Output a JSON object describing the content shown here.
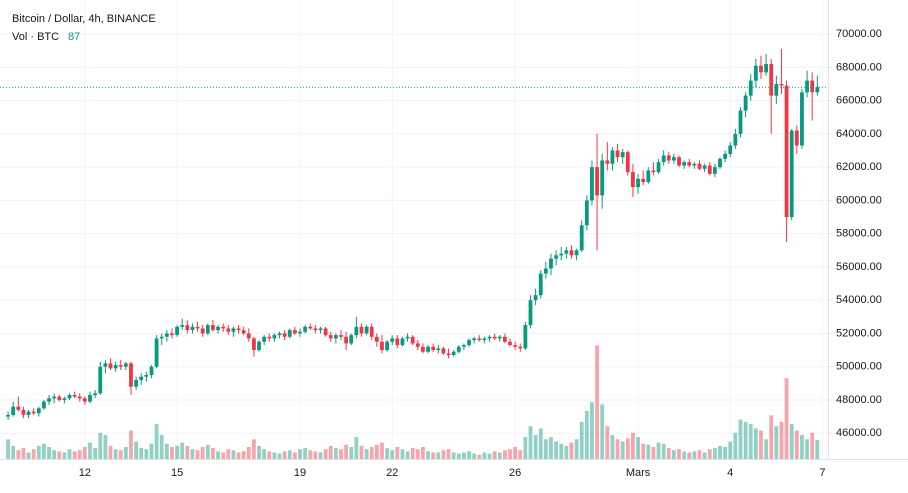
{
  "chart_data": {
    "type": "candlestick",
    "title": "Bitcoin / Dollar, 4h, BINANCE",
    "volume_title": "Vol · BTC",
    "up_color": "#089981",
    "down_color": "#f23645",
    "grid": true,
    "ylim": [
      44450,
      72050
    ],
    "yticks": [
      {
        "value": 46000,
        "label": "46000.00"
      },
      {
        "value": 48000,
        "label": "48000.00"
      },
      {
        "value": 50000,
        "label": "50000.00"
      },
      {
        "value": 52000,
        "label": "52000.00"
      },
      {
        "value": 54000,
        "label": "54000.00"
      },
      {
        "value": 56000,
        "label": "56000.00"
      },
      {
        "value": 58000,
        "label": "58000.00"
      },
      {
        "value": 60000,
        "label": "60000.00"
      },
      {
        "value": 62000,
        "label": "62000.00"
      },
      {
        "value": 64000,
        "label": "64000.00"
      },
      {
        "value": 66000,
        "label": "66000.00"
      },
      {
        "value": 68000,
        "label": "68000.00"
      },
      {
        "value": 70000,
        "label": "70000.00"
      }
    ],
    "vlim": [
      0,
      2100
    ],
    "categories": [
      null,
      null,
      null,
      null,
      null,
      null,
      null,
      null,
      null,
      null,
      null,
      null,
      null,
      null,
      null,
      "12",
      null,
      null,
      null,
      null,
      null,
      null,
      null,
      null,
      null,
      null,
      null,
      null,
      null,
      null,
      null,
      null,
      null,
      "15",
      null,
      null,
      null,
      null,
      null,
      null,
      null,
      null,
      null,
      null,
      null,
      null,
      null,
      null,
      null,
      null,
      null,
      null,
      null,
      null,
      null,
      null,
      null,
      "19",
      null,
      null,
      null,
      null,
      null,
      null,
      null,
      null,
      null,
      null,
      null,
      null,
      null,
      null,
      null,
      null,
      null,
      "22",
      null,
      null,
      null,
      null,
      null,
      null,
      null,
      null,
      null,
      null,
      null,
      null,
      null,
      null,
      null,
      null,
      null,
      null,
      null,
      null,
      null,
      null,
      null,
      "26",
      null,
      null,
      null,
      null,
      null,
      null,
      null,
      null,
      null,
      null,
      null,
      null,
      null,
      null,
      null,
      null,
      null,
      null,
      null,
      null,
      null,
      null,
      null,
      "Mars",
      null,
      null,
      null,
      null,
      null,
      null,
      null,
      null,
      null,
      null,
      null,
      null,
      null,
      null,
      null,
      null,
      null,
      "4",
      null,
      null,
      null,
      null,
      null,
      null,
      null,
      null,
      null,
      null,
      null,
      null,
      null,
      null,
      null,
      null,
      null,
      "7"
    ],
    "candles": [
      [
        47000,
        47300,
        46800,
        47100,
        90
      ],
      [
        47100,
        47900,
        47000,
        47600,
        60
      ],
      [
        47600,
        48200,
        47300,
        47400,
        40
      ],
      [
        47400,
        47600,
        46900,
        47100,
        50
      ],
      [
        47100,
        47400,
        46900,
        47300,
        30
      ],
      [
        47300,
        47500,
        47100,
        47200,
        45
      ],
      [
        47200,
        47600,
        47000,
        47500,
        60
      ],
      [
        47500,
        48000,
        47400,
        47900,
        70
      ],
      [
        47900,
        48300,
        47700,
        48100,
        55
      ],
      [
        48100,
        48400,
        47800,
        48200,
        40
      ],
      [
        48200,
        48300,
        47900,
        48000,
        35
      ],
      [
        48000,
        48200,
        47800,
        48100,
        30
      ],
      [
        48100,
        48400,
        48000,
        48300,
        45
      ],
      [
        48300,
        48500,
        48100,
        48200,
        35
      ],
      [
        48200,
        48400,
        47900,
        48100,
        40
      ],
      [
        48100,
        48200,
        47700,
        47900,
        55
      ],
      [
        47900,
        48500,
        47800,
        48300,
        75
      ],
      [
        48300,
        48600,
        48100,
        48400,
        50
      ],
      [
        48400,
        50300,
        48300,
        50000,
        120
      ],
      [
        50000,
        50400,
        49600,
        50200,
        110
      ],
      [
        50200,
        50500,
        49800,
        49900,
        60
      ],
      [
        49900,
        50300,
        49700,
        50100,
        45
      ],
      [
        50100,
        50400,
        49800,
        50000,
        40
      ],
      [
        50000,
        50300,
        49800,
        50200,
        55
      ],
      [
        50200,
        50300,
        48300,
        48800,
        130
      ],
      [
        48800,
        49400,
        48600,
        49200,
        80
      ],
      [
        49200,
        49600,
        48900,
        49400,
        50
      ],
      [
        49400,
        49700,
        49100,
        49500,
        45
      ],
      [
        49500,
        50100,
        49300,
        50000,
        70
      ],
      [
        50000,
        51900,
        49900,
        51700,
        160
      ],
      [
        51700,
        52000,
        51300,
        51800,
        110
      ],
      [
        51800,
        52200,
        51500,
        52000,
        70
      ],
      [
        52000,
        52300,
        51700,
        51900,
        55
      ],
      [
        51900,
        52500,
        51800,
        52400,
        60
      ],
      [
        52400,
        52900,
        52200,
        52500,
        75
      ],
      [
        52500,
        52800,
        52000,
        52200,
        60
      ],
      [
        52200,
        52600,
        52000,
        52400,
        45
      ],
      [
        52400,
        52700,
        52100,
        52300,
        40
      ],
      [
        52300,
        52500,
        51800,
        52000,
        55
      ],
      [
        52000,
        52600,
        51900,
        52500,
        65
      ],
      [
        52500,
        52800,
        52100,
        52200,
        50
      ],
      [
        52200,
        52500,
        52000,
        52400,
        35
      ],
      [
        52400,
        52600,
        52100,
        52300,
        30
      ],
      [
        52300,
        52500,
        51900,
        52100,
        45
      ],
      [
        52100,
        52400,
        51800,
        52300,
        40
      ],
      [
        52300,
        52500,
        52000,
        52200,
        30
      ],
      [
        52200,
        52400,
        51900,
        52000,
        35
      ],
      [
        52000,
        52300,
        51500,
        51700,
        55
      ],
      [
        51700,
        51800,
        50600,
        51000,
        90
      ],
      [
        51000,
        51600,
        50900,
        51500,
        60
      ],
      [
        51500,
        51900,
        51300,
        51800,
        45
      ],
      [
        51800,
        52000,
        51500,
        51700,
        35
      ],
      [
        51700,
        52000,
        51500,
        51900,
        30
      ],
      [
        51900,
        52100,
        51700,
        52000,
        25
      ],
      [
        52000,
        52200,
        51600,
        51800,
        35
      ],
      [
        51800,
        52300,
        51700,
        52200,
        40
      ],
      [
        52200,
        52400,
        51900,
        52000,
        30
      ],
      [
        52000,
        52300,
        51800,
        52100,
        45
      ],
      [
        52100,
        52500,
        52000,
        52400,
        50
      ],
      [
        52400,
        52600,
        52200,
        52300,
        40
      ],
      [
        52300,
        52500,
        52000,
        52200,
        35
      ],
      [
        52200,
        52400,
        52000,
        52300,
        30
      ],
      [
        52300,
        52400,
        51800,
        51900,
        45
      ],
      [
        51900,
        52100,
        51500,
        51700,
        60
      ],
      [
        51700,
        52000,
        51400,
        51900,
        50
      ],
      [
        51900,
        52200,
        51600,
        51800,
        45
      ],
      [
        51800,
        52100,
        51000,
        51400,
        65
      ],
      [
        51400,
        52000,
        51300,
        51900,
        55
      ],
      [
        51900,
        53000,
        51700,
        52400,
        100
      ],
      [
        52400,
        52600,
        51800,
        52000,
        60
      ],
      [
        52000,
        52500,
        51900,
        52400,
        45
      ],
      [
        52400,
        52600,
        51600,
        51800,
        55
      ],
      [
        51800,
        52000,
        51200,
        51500,
        65
      ],
      [
        51500,
        51900,
        50800,
        51000,
        75
      ],
      [
        51000,
        51600,
        50900,
        51500,
        50
      ],
      [
        51500,
        51900,
        51300,
        51700,
        40
      ],
      [
        51700,
        51900,
        51100,
        51300,
        55
      ],
      [
        51300,
        51800,
        51200,
        51700,
        45
      ],
      [
        51700,
        52000,
        51500,
        51800,
        35
      ],
      [
        51800,
        51900,
        51300,
        51400,
        50
      ],
      [
        51400,
        51600,
        51000,
        51200,
        45
      ],
      [
        51200,
        51400,
        50800,
        50900,
        55
      ],
      [
        50900,
        51300,
        50800,
        51200,
        35
      ],
      [
        51200,
        51400,
        50900,
        51000,
        30
      ],
      [
        51000,
        51300,
        50800,
        51100,
        30
      ],
      [
        51100,
        51200,
        50700,
        50800,
        40
      ],
      [
        50800,
        51100,
        50500,
        50700,
        45
      ],
      [
        50700,
        51000,
        50600,
        50900,
        30
      ],
      [
        50900,
        51300,
        50800,
        51200,
        25
      ],
      [
        51200,
        51400,
        51000,
        51300,
        30
      ],
      [
        51300,
        51700,
        51200,
        51600,
        35
      ],
      [
        51600,
        51800,
        51400,
        51700,
        25
      ],
      [
        51700,
        51900,
        51500,
        51600,
        20
      ],
      [
        51600,
        51800,
        51400,
        51700,
        30
      ],
      [
        51700,
        51900,
        51500,
        51800,
        25
      ],
      [
        51800,
        52000,
        51600,
        51700,
        35
      ],
      [
        51700,
        51900,
        51500,
        51800,
        30
      ],
      [
        51800,
        52000,
        51400,
        51500,
        40
      ],
      [
        51500,
        51700,
        51200,
        51300,
        45
      ],
      [
        51300,
        51500,
        51000,
        51200,
        55
      ],
      [
        51200,
        51400,
        50900,
        51100,
        40
      ],
      [
        51100,
        52700,
        51000,
        52500,
        100
      ],
      [
        52500,
        54300,
        52300,
        54000,
        150
      ],
      [
        54000,
        54700,
        53700,
        54300,
        110
      ],
      [
        54300,
        55800,
        54100,
        55600,
        140
      ],
      [
        55600,
        56300,
        55300,
        55900,
        90
      ],
      [
        55900,
        56800,
        55500,
        56500,
        100
      ],
      [
        56500,
        57000,
        56100,
        56700,
        80
      ],
      [
        56700,
        57200,
        56400,
        56800,
        70
      ],
      [
        56800,
        57200,
        56500,
        57000,
        60
      ],
      [
        57000,
        57300,
        56500,
        56700,
        75
      ],
      [
        56700,
        57100,
        56400,
        57000,
        90
      ],
      [
        57000,
        58800,
        56900,
        58500,
        170
      ],
      [
        58500,
        60300,
        58200,
        60000,
        220
      ],
      [
        60000,
        62400,
        59700,
        62000,
        260
      ],
      [
        62000,
        64000,
        57000,
        60300,
        520
      ],
      [
        60300,
        62800,
        59500,
        62400,
        250
      ],
      [
        62400,
        63500,
        61800,
        62200,
        150
      ],
      [
        62200,
        63200,
        61800,
        63000,
        110
      ],
      [
        63000,
        63400,
        62300,
        62600,
        90
      ],
      [
        62600,
        63100,
        62200,
        62900,
        80
      ],
      [
        62900,
        63000,
        61500,
        61700,
        95
      ],
      [
        61700,
        62200,
        60200,
        60800,
        120
      ],
      [
        60800,
        61600,
        60400,
        61300,
        100
      ],
      [
        61300,
        61800,
        60900,
        61100,
        70
      ],
      [
        61100,
        62000,
        61000,
        61800,
        65
      ],
      [
        61800,
        62300,
        61500,
        61700,
        55
      ],
      [
        61700,
        62500,
        61600,
        62300,
        75
      ],
      [
        62300,
        63000,
        62100,
        62700,
        70
      ],
      [
        62700,
        62900,
        62200,
        62400,
        50
      ],
      [
        62400,
        62800,
        62200,
        62600,
        40
      ],
      [
        62600,
        62700,
        62000,
        62100,
        45
      ],
      [
        62100,
        62400,
        61900,
        62300,
        35
      ],
      [
        62300,
        62500,
        62000,
        62100,
        30
      ],
      [
        62100,
        62300,
        61900,
        62200,
        35
      ],
      [
        62200,
        62400,
        61800,
        61900,
        40
      ],
      [
        61900,
        62200,
        61700,
        62100,
        30
      ],
      [
        62100,
        62300,
        61500,
        61600,
        45
      ],
      [
        61600,
        62200,
        61400,
        62000,
        50
      ],
      [
        62000,
        62600,
        61900,
        62500,
        60
      ],
      [
        62500,
        63000,
        62300,
        62800,
        55
      ],
      [
        62800,
        63500,
        62600,
        63300,
        80
      ],
      [
        63300,
        64300,
        63100,
        64000,
        120
      ],
      [
        64000,
        65600,
        63800,
        65400,
        180
      ],
      [
        65400,
        66500,
        65000,
        66300,
        170
      ],
      [
        66300,
        67600,
        66000,
        67200,
        160
      ],
      [
        67200,
        68500,
        66800,
        68100,
        140
      ],
      [
        68100,
        68700,
        67300,
        67700,
        130
      ],
      [
        67700,
        68800,
        67500,
        68200,
        90
      ],
      [
        68200,
        68500,
        64000,
        66300,
        200
      ],
      [
        66300,
        67500,
        65800,
        67000,
        150
      ],
      [
        67000,
        69100,
        66400,
        66900,
        170
      ],
      [
        66900,
        67200,
        57500,
        59000,
        370
      ],
      [
        59000,
        64300,
        58800,
        64200,
        160
      ],
      [
        64200,
        64500,
        62800,
        63300,
        130
      ],
      [
        63300,
        66700,
        63100,
        66500,
        110
      ],
      [
        66500,
        67800,
        66200,
        67200,
        90
      ],
      [
        67200,
        67700,
        64800,
        66500,
        120
      ],
      [
        66500,
        67500,
        66300,
        66800,
        87
      ],
      null
    ]
  }
}
